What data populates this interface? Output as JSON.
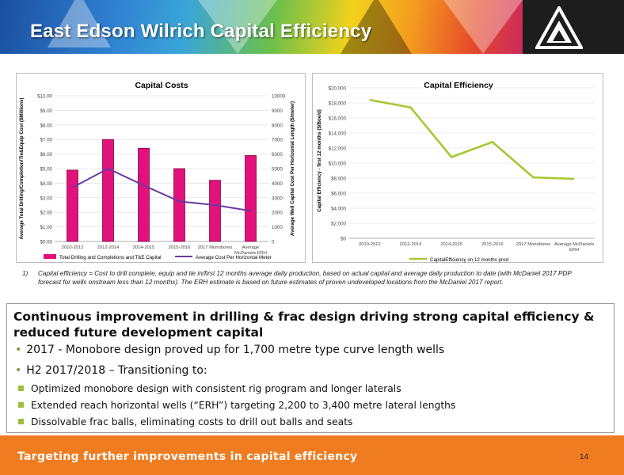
{
  "header": {
    "title": "East Edson Wilrich Capital Efficiency"
  },
  "chart_data": [
    {
      "type": "bar",
      "title": "Capital Costs",
      "ylabel": "Average Total Drilling/Completion/Tie&Equip Cost ($Millions)",
      "y2label": "Average Well Capital Cost Per Horizontal Length ($/meter)",
      "categories": [
        "2010-2012",
        "2012-2014",
        "2014-2015",
        "2015-2016",
        "2017 Monobores",
        "Average McDaniels ERH"
      ],
      "y_ticks": [
        "$0.00",
        "$1.00",
        "$2.00",
        "$3.00",
        "$4.00",
        "$5.00",
        "$6.00",
        "$7.00",
        "$8.00",
        "$9.00",
        "$10.00"
      ],
      "y2_ticks": [
        "0",
        "1000",
        "2000",
        "3000",
        "4000",
        "5000",
        "6000",
        "7000",
        "8000",
        "9000",
        "10000"
      ],
      "ylim": [
        0,
        10
      ],
      "y2lim": [
        0,
        10000
      ],
      "series": [
        {
          "name": "Total Drilling and Completions and T&E Capital",
          "type": "bar",
          "color": "#e3117c",
          "values": [
            4.9,
            7.0,
            6.4,
            5.0,
            4.2,
            5.9
          ]
        },
        {
          "name": "Average Cost Per Horizontal Meter",
          "type": "line",
          "axis": "right",
          "color": "#6a3aa0",
          "values": [
            3700,
            5000,
            3850,
            2750,
            2500,
            2100
          ]
        }
      ],
      "legend": "bottom"
    },
    {
      "type": "line",
      "title": "Capital Efficiency",
      "ylabel": "Capital Efficiency - first 12 months ($/Boe/d)",
      "categories": [
        "2010-2012",
        "2012-2014",
        "2014-2015",
        "2015-2016",
        "2017 Monobores",
        "Average McDaniels ERH"
      ],
      "y_ticks": [
        "$0",
        "$2,000",
        "$4,000",
        "$6,000",
        "$8,000",
        "$10,000",
        "$12,000",
        "$14,000",
        "$16,000",
        "$18,000",
        "$20,000"
      ],
      "ylim": [
        0,
        20000
      ],
      "series": [
        {
          "name": "CapitalEfficiency on 12 months prod",
          "color": "#a6c832",
          "values": [
            18400,
            17400,
            10800,
            12800,
            8100,
            7900
          ]
        }
      ],
      "legend": "bottom"
    }
  ],
  "footnote": {
    "number": "1)",
    "text": "Capital efficiency = Cost to drill complete, equip and tie in/first 12 months average daily production, based on actual capital and average daily production to date (with McDaniel 2017 PDP forecast for wells onstream less than 12 months). The ERH estimate is based on future estimates of proven undeveloped locations from the McDaniel 2017 report."
  },
  "content": {
    "headline": "Continuous improvement in drilling & frac design driving strong capital efficiency & reduced future development capital",
    "bullet1": "2017 - Monobore design proved up for 1,700 metre type curve length wells",
    "bullet2": "H2 2017/2018 – Transitioning to:",
    "sub1": "Optimized monobore design with consistent rig program and longer laterals",
    "sub2": "Extended reach horizontal wells (“ERH”) targeting 2,200 to 3,400 metre lateral lengths",
    "sub3": "Dissolvable frac balls, eliminating costs to drill out balls and seats"
  },
  "footer": {
    "cta": "Targeting further improvements in capital efficiency",
    "page": "14"
  }
}
